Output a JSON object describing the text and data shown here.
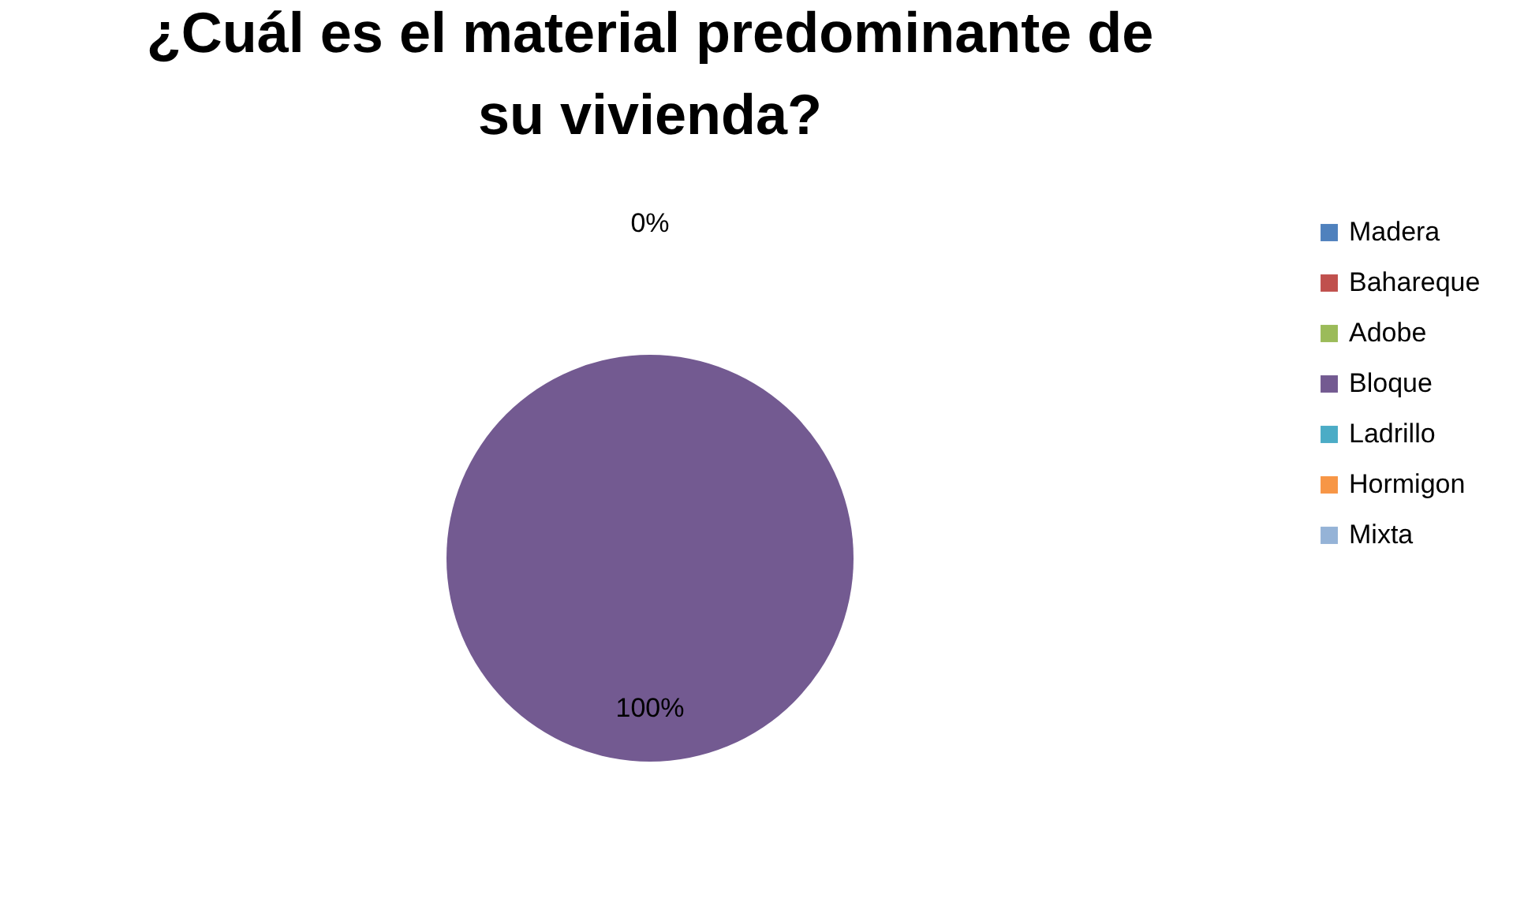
{
  "chart_data": {
    "type": "pie",
    "title": "¿Cuál es el material predominante de su vivienda?",
    "categories": [
      "Madera",
      "Bahareque",
      "Adobe",
      "Bloque",
      "Ladrillo",
      "Hormigon",
      "Mixta"
    ],
    "values": [
      0,
      0,
      0,
      100,
      0,
      0,
      0
    ],
    "colors": [
      "#4f81bd",
      "#c0504d",
      "#9bbb59",
      "#735a91",
      "#4bacc6",
      "#f79646",
      "#95b3d7"
    ],
    "value_labels": [
      "0%",
      null,
      null,
      "100%",
      null,
      null,
      null
    ],
    "legend": "right"
  }
}
